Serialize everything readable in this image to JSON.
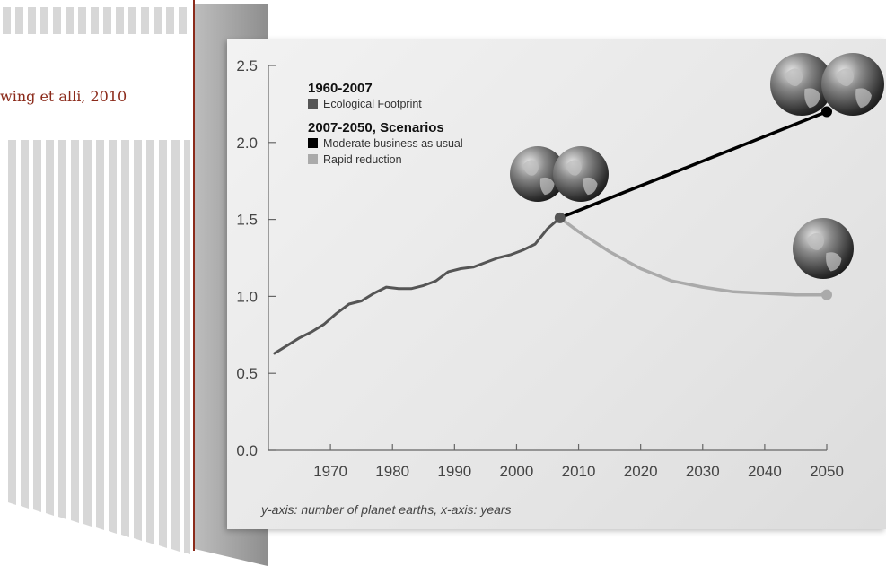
{
  "citation": "wing et alli, 2010",
  "caption": "y-axis: number of planet earths, x-axis: years",
  "legend": {
    "heading1": "1960-2007",
    "item1": "Ecological Footprint",
    "heading2": "2007-2050, Scenarios",
    "item2": "Moderate business as usual",
    "item3": "Rapid reduction"
  },
  "colors": {
    "footprint": "#555555",
    "moderate": "#000000",
    "rapid": "#aaaaaa",
    "accent": "#8b2a1a"
  },
  "chart_data": {
    "type": "line",
    "xlim": [
      1960,
      2050
    ],
    "ylim": [
      0.0,
      2.5
    ],
    "x_ticks": [
      "1970",
      "1980",
      "1990",
      "2000",
      "2010",
      "2020",
      "2030",
      "2040",
      "2050"
    ],
    "y_ticks": [
      "0.0",
      "0.5",
      "1.0",
      "1.5",
      "2.0",
      "2.5"
    ],
    "series": [
      {
        "name": "Ecological Footprint",
        "color": "#555555",
        "x": [
          1961,
          1963,
          1965,
          1967,
          1969,
          1971,
          1973,
          1975,
          1977,
          1979,
          1981,
          1983,
          1985,
          1987,
          1989,
          1991,
          1993,
          1995,
          1997,
          1999,
          2001,
          2003,
          2005,
          2007
        ],
        "y": [
          0.63,
          0.68,
          0.73,
          0.77,
          0.82,
          0.89,
          0.95,
          0.97,
          1.02,
          1.06,
          1.05,
          1.05,
          1.07,
          1.1,
          1.16,
          1.18,
          1.19,
          1.22,
          1.25,
          1.27,
          1.3,
          1.34,
          1.44,
          1.51
        ]
      },
      {
        "name": "Moderate business as usual",
        "color": "#000000",
        "x": [
          2007,
          2050
        ],
        "y": [
          1.51,
          2.2
        ]
      },
      {
        "name": "Rapid reduction",
        "color": "#aaaaaa",
        "x": [
          2007,
          2010,
          2015,
          2020,
          2025,
          2030,
          2035,
          2040,
          2045,
          2050
        ],
        "y": [
          1.51,
          1.42,
          1.29,
          1.18,
          1.1,
          1.06,
          1.03,
          1.02,
          1.01,
          1.01
        ]
      }
    ]
  }
}
